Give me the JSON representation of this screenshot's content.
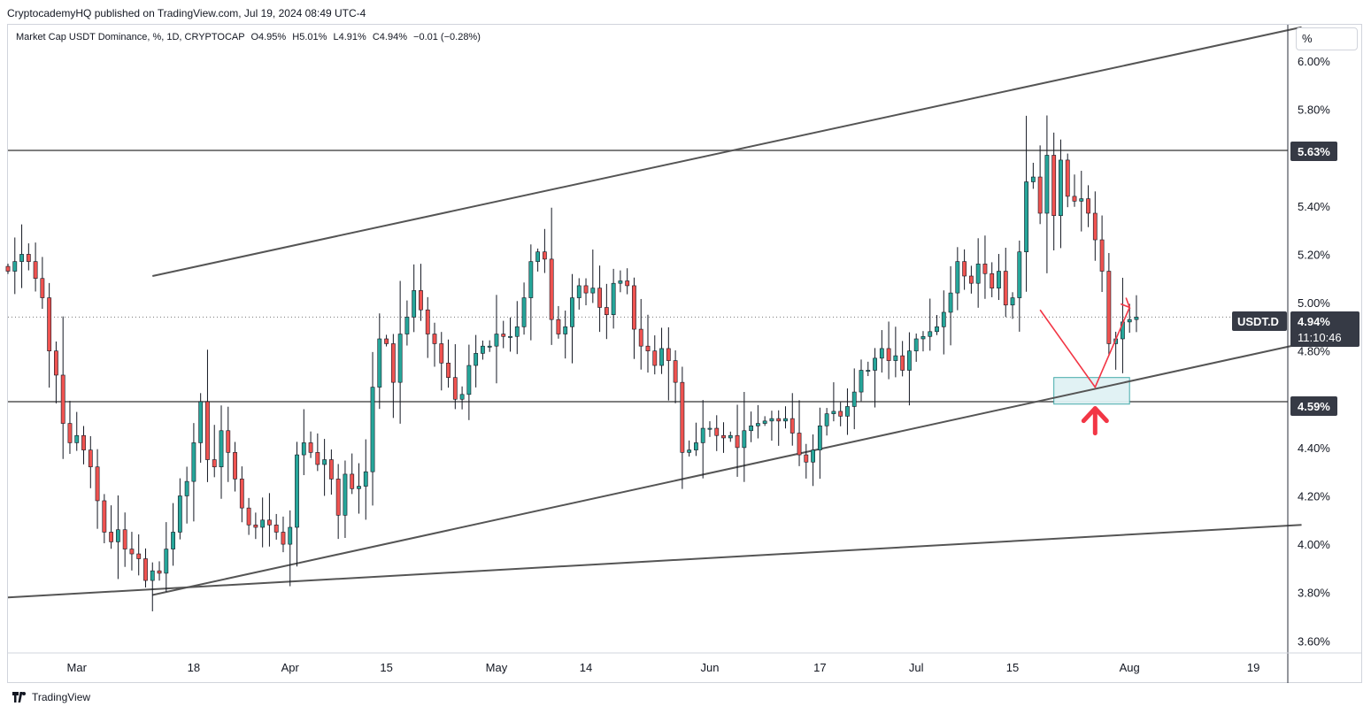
{
  "header": {
    "publisher_line": "CryptocademyHQ published on TradingView.com, Jul 19, 2024 08:49 UTC-4"
  },
  "legend": {
    "symbol": "Market Cap USDT Dominance, %, 1D, CRYPTOCAP",
    "open": "O4.95%",
    "high": "H5.01%",
    "low": "L4.91%",
    "close": "C4.94%",
    "change": "−0.01 (−0.28%)"
  },
  "price_axis": {
    "unit_button": "%"
  },
  "tags": {
    "level_high": "5.63%",
    "level_low": "4.59%",
    "symbol_name": "USDT.D",
    "last_price": "4.94%",
    "countdown": "11:10:46"
  },
  "footer": {
    "brand": "TradingView"
  },
  "colors": {
    "bull": "#26a69a",
    "bear": "#ef5350",
    "trendline": "#555555",
    "arrow": "#f23645",
    "box_fill": "#e0f2f4",
    "box_border": "#3aa6a6",
    "tag_bg": "#363a45"
  },
  "chart_data": {
    "type": "candlestick",
    "symbol": "USDT.D",
    "timeframe": "1D",
    "y_unit": "%",
    "ylim": [
      3.55,
      6.15
    ],
    "yticks": [
      3.6,
      3.8,
      4.0,
      4.2,
      4.4,
      4.6,
      4.8,
      5.0,
      5.2,
      5.4,
      5.6,
      5.8,
      6.0
    ],
    "ytick_labels": [
      "3.60%",
      "3.80%",
      "4.00%",
      "4.20%",
      "4.40%",
      "",
      "4.80%",
      "5.00%",
      "5.20%",
      "5.40%",
      "",
      "5.80%",
      "6.00%"
    ],
    "x_start_date": "2024-02-20",
    "x_end_date": "2024-08-24",
    "xticks": [
      {
        "date": "2024-03-01",
        "label": "Mar"
      },
      {
        "date": "2024-03-18",
        "label": "18"
      },
      {
        "date": "2024-04-01",
        "label": "Apr"
      },
      {
        "date": "2024-04-15",
        "label": "15"
      },
      {
        "date": "2024-05-01",
        "label": "May"
      },
      {
        "date": "2024-05-14",
        "label": "14"
      },
      {
        "date": "2024-06-01",
        "label": "Jun"
      },
      {
        "date": "2024-06-17",
        "label": "17"
      },
      {
        "date": "2024-07-01",
        "label": "Jul"
      },
      {
        "date": "2024-07-15",
        "label": "15"
      },
      {
        "date": "2024-08-01",
        "label": "Aug"
      },
      {
        "date": "2024-08-19",
        "label": "19"
      }
    ],
    "start_date": "2024-02-20",
    "closes": [
      5.13,
      5.17,
      5.2,
      5.17,
      5.1,
      5.02,
      4.8,
      4.7,
      4.5,
      4.42,
      4.45,
      4.39,
      4.32,
      4.18,
      4.05,
      4.01,
      4.06,
      3.98,
      3.96,
      3.94,
      3.85,
      3.89,
      3.88,
      3.98,
      4.05,
      4.2,
      4.26,
      4.42,
      4.59,
      4.35,
      4.32,
      4.47,
      4.38,
      4.27,
      4.15,
      4.08,
      4.07,
      4.1,
      4.08,
      4.05,
      4.0,
      4.07,
      4.37,
      4.42,
      4.38,
      4.33,
      4.35,
      4.27,
      4.12,
      4.29,
      4.23,
      4.24,
      4.3,
      4.65,
      4.85,
      4.83,
      4.67,
      4.87,
      4.94,
      5.05,
      4.97,
      4.87,
      4.83,
      4.75,
      4.69,
      4.6,
      4.62,
      4.74,
      4.79,
      4.82,
      4.82,
      4.87,
      4.86,
      4.86,
      4.9,
      5.02,
      5.17,
      5.21,
      5.18,
      4.93,
      4.87,
      4.9,
      5.02,
      5.07,
      5.04,
      5.06,
      4.98,
      4.95,
      5.08,
      5.09,
      5.07,
      4.89,
      4.82,
      4.8,
      4.74,
      4.81,
      4.76,
      4.67,
      4.38,
      4.39,
      4.42,
      4.48,
      4.48,
      4.45,
      4.44,
      4.45,
      4.4,
      4.47,
      4.49,
      4.5,
      4.51,
      4.52,
      4.51,
      4.52,
      4.46,
      4.37,
      4.34,
      4.39,
      4.49,
      4.54,
      4.55,
      4.53,
      4.57,
      4.63,
      4.72,
      4.72,
      4.77,
      4.81,
      4.76,
      4.78,
      4.72,
      4.8,
      4.85,
      4.86,
      4.88,
      4.9,
      4.96,
      5.04,
      5.17,
      5.11,
      5.08,
      5.16,
      5.12,
      5.06,
      5.13,
      4.99,
      5.02,
      5.21,
      5.5,
      5.52,
      5.37,
      5.61,
      5.36,
      5.59,
      5.44,
      5.42,
      5.43,
      5.37,
      5.26,
      5.13,
      4.83,
      4.85,
      4.92,
      4.93,
      4.94
    ],
    "annotations": {
      "horizontal_levels": [
        5.63,
        4.59
      ],
      "trendlines": [
        {
          "name": "upper channel",
          "from": [
            "2024-03-12",
            5.11
          ],
          "to": [
            "2024-08-26",
            6.14
          ]
        },
        {
          "name": "rising support",
          "from": [
            "2024-03-12",
            3.79
          ],
          "to": [
            "2024-08-26",
            4.83
          ]
        },
        {
          "name": "long-term support",
          "from": [
            "2024-02-20",
            3.78
          ],
          "to": [
            "2024-08-26",
            4.08
          ]
        }
      ],
      "target_zone": {
        "from": "2024-07-21",
        "to": "2024-08-01",
        "low": 4.58,
        "high": 4.69
      },
      "projection_path": [
        [
          "2024-07-19",
          4.97
        ],
        [
          "2024-07-27",
          4.65
        ],
        [
          "2024-08-01",
          4.98
        ]
      ]
    }
  }
}
